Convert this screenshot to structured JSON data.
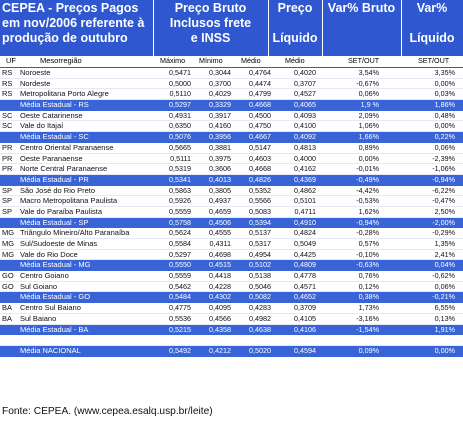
{
  "header": {
    "title_lines": [
      "CEPEA - Preços Pagos",
      "em nov/2006 referente à",
      "produção de outubro"
    ],
    "bruto_lines": [
      "Preço Bruto",
      "Inclusos frete",
      "e INSS"
    ],
    "preco_lines": [
      "Preço",
      "",
      "Líquido"
    ],
    "var_bruto_lines": [
      "Var% Bruto",
      "",
      ""
    ],
    "var_liq_lines": [
      "Var%",
      "",
      "Líquido"
    ]
  },
  "columns": {
    "uf": "UF",
    "regiao": "Mesorregião",
    "max": "Máximo",
    "min": "Mínimo",
    "med": "Médio",
    "liq": "Médio",
    "var_bruto": "SET/OUT",
    "var_liq": "SET/OUT"
  },
  "rows": [
    {
      "uf": "RS",
      "reg": "Noroeste",
      "max": "0,5471",
      "min": "0,3044",
      "med": "0,4764",
      "liq": "0,4020",
      "vb": "3,54%",
      "vl": "3,35%",
      "type": "normal"
    },
    {
      "uf": "RS",
      "reg": "Nordeste",
      "max": "0,5000",
      "min": "0,3700",
      "med": "0,4474",
      "liq": "0,3707",
      "vb": "-0,67%",
      "vl": "0,00%",
      "type": "normal"
    },
    {
      "uf": "RS",
      "reg": "Metropolitana Porto Alegre",
      "max": "0,5110",
      "min": "0,4029",
      "med": "0,4799",
      "liq": "0,4527",
      "vb": "0,06%",
      "vl": "0,03%",
      "type": "normal"
    },
    {
      "uf": "",
      "reg": "Média Estadual - RS",
      "max": "0,5297",
      "min": "0,3329",
      "med": "0,4668",
      "liq": "0,4065",
      "vb": "1,9 %",
      "vl": "1,86%",
      "type": "avg"
    },
    {
      "uf": "SC",
      "reg": "Oeste Catarinense",
      "max": "0,4931",
      "min": "0,3917",
      "med": "0,4500",
      "liq": "0,4093",
      "vb": "2,09%",
      "vl": "0,48%",
      "type": "normal"
    },
    {
      "uf": "SC",
      "reg": "Vale do Itajaí",
      "max": "0,6350",
      "min": "0,4160",
      "med": "0,4750",
      "liq": "0,4100",
      "vb": "1,06%",
      "vl": "0,00%",
      "type": "normal"
    },
    {
      "uf": "",
      "reg": "Média Estadual - SC",
      "max": "0,5076",
      "min": "0,3956",
      "med": "0,4667",
      "liq": "0,4092",
      "vb": "1,66%",
      "vl": "0,22%",
      "type": "avg"
    },
    {
      "uf": "PR",
      "reg": "Centro Oriental Paranaense",
      "max": "0,5665",
      "min": "0,3881",
      "med": "0,5147",
      "liq": "0,4813",
      "vb": "0,89%",
      "vl": "0,06%",
      "type": "normal"
    },
    {
      "uf": "PR",
      "reg": "Oeste Paranaense",
      "max": "0,5111",
      "min": "0,3975",
      "med": "0,4603",
      "liq": "0,4000",
      "vb": "0,00%",
      "vl": "-2,39%",
      "type": "normal"
    },
    {
      "uf": "PR",
      "reg": "Norte Central Paranaense",
      "max": "0,5319",
      "min": "0,3606",
      "med": "0,4668",
      "liq": "0,4162",
      "vb": "-0,01%",
      "vl": "-1,06%",
      "type": "normal"
    },
    {
      "uf": "",
      "reg": "Média Estadual - PR",
      "max": "0,5341",
      "min": "0,4013",
      "med": "0,4826",
      "liq": "0,4369",
      "vb": "-0,49%",
      "vl": "-0,94%",
      "type": "avg"
    },
    {
      "uf": "SP",
      "reg": "São José do Rio Preto",
      "max": "0,5863",
      "min": "0,3805",
      "med": "0,5352",
      "liq": "0,4862",
      "vb": "-4,42%",
      "vl": "-6,22%",
      "type": "normal"
    },
    {
      "uf": "SP",
      "reg": "Macro Metropolitana Paulista",
      "max": "0,5926",
      "min": "0,4937",
      "med": "0,5566",
      "liq": "0,5101",
      "vb": "-0,53%",
      "vl": "-0,47%",
      "type": "normal"
    },
    {
      "uf": "SP",
      "reg": "Vale do Paraíba Paulista",
      "max": "0,5559",
      "min": "0,4659",
      "med": "0,5083",
      "liq": "0,4711",
      "vb": "1,62%",
      "vl": "2,50%",
      "type": "normal"
    },
    {
      "uf": "",
      "reg": "Média Estadual - SP",
      "max": "0,5758",
      "min": "0,4506",
      "med": "0,5394",
      "liq": "0,4910",
      "vb": "-0,94%",
      "vl": "-2,00%",
      "type": "avg"
    },
    {
      "uf": "MG",
      "reg": "Triângulo Mineiro/Alto Paranaíba",
      "max": "0,5624",
      "min": "0,4555",
      "med": "0,5137",
      "liq": "0,4824",
      "vb": "-0,28%",
      "vl": "-0,29%",
      "type": "normal"
    },
    {
      "uf": "MG",
      "reg": "Sul/Sudoeste de Minas",
      "max": "0,5584",
      "min": "0,4311",
      "med": "0,5317",
      "liq": "0,5049",
      "vb": "0,57%",
      "vl": "1,35%",
      "type": "normal"
    },
    {
      "uf": "MG",
      "reg": "Vale do Rio Doce",
      "max": "0,5297",
      "min": "0,4698",
      "med": "0,4954",
      "liq": "0,4425",
      "vb": "-0,10%",
      "vl": "2,41%",
      "type": "normal"
    },
    {
      "uf": "",
      "reg": "Média Estadual - MG",
      "max": "0,5550",
      "min": "0,4515",
      "med": "0,5102",
      "liq": "0,4809",
      "vb": "-0,63%",
      "vl": "0,04%",
      "type": "avg"
    },
    {
      "uf": "GO",
      "reg": "Centro Goiano",
      "max": "0,5559",
      "min": "0,4418",
      "med": "0,5138",
      "liq": "0,4778",
      "vb": "0,76%",
      "vl": "-0,62%",
      "type": "normal"
    },
    {
      "uf": "GO",
      "reg": "Sul Goiano",
      "max": "0,5462",
      "min": "0,4228",
      "med": "0,5046",
      "liq": "0,4571",
      "vb": "0,12%",
      "vl": "0,06%",
      "type": "normal"
    },
    {
      "uf": "",
      "reg": "Média Estadual - GO",
      "max": "0,5484",
      "min": "0,4302",
      "med": "0,5082",
      "liq": "0,4652",
      "vb": "0,38%",
      "vl": "-0,21%",
      "type": "avg"
    },
    {
      "uf": "BA",
      "reg": "Centro Sul Baiano",
      "max": "0,4775",
      "min": "0,4095",
      "med": "0,4283",
      "liq": "0,3709",
      "vb": "1,73%",
      "vl": "6,55%",
      "type": "normal"
    },
    {
      "uf": "BA",
      "reg": "Sul Baiano",
      "max": "0,5536",
      "min": "0,4566",
      "med": "0,4982",
      "liq": "0,4105",
      "vb": "-3,16%",
      "vl": "0,13%",
      "type": "normal"
    },
    {
      "uf": "",
      "reg": "Média Estadual - BA",
      "max": "0,5215",
      "min": "0,4358",
      "med": "0,4638",
      "liq": "0,4106",
      "vb": "-1,54%",
      "vl": "1,91%",
      "type": "avg"
    },
    {
      "uf": "",
      "reg": "",
      "max": "",
      "min": "",
      "med": "",
      "liq": "",
      "vb": "",
      "vl": "",
      "type": "normal"
    },
    {
      "uf": "",
      "reg": "Média NACIONAL",
      "max": "0,5492",
      "min": "0,4212",
      "med": "0,5020",
      "liq": "0,4594",
      "vb": "0,09%",
      "vl": "0,00%",
      "type": "nat"
    }
  ],
  "footer": "Fonte: CEPEA. (www.cepea.esalq.usp.br/leite)"
}
